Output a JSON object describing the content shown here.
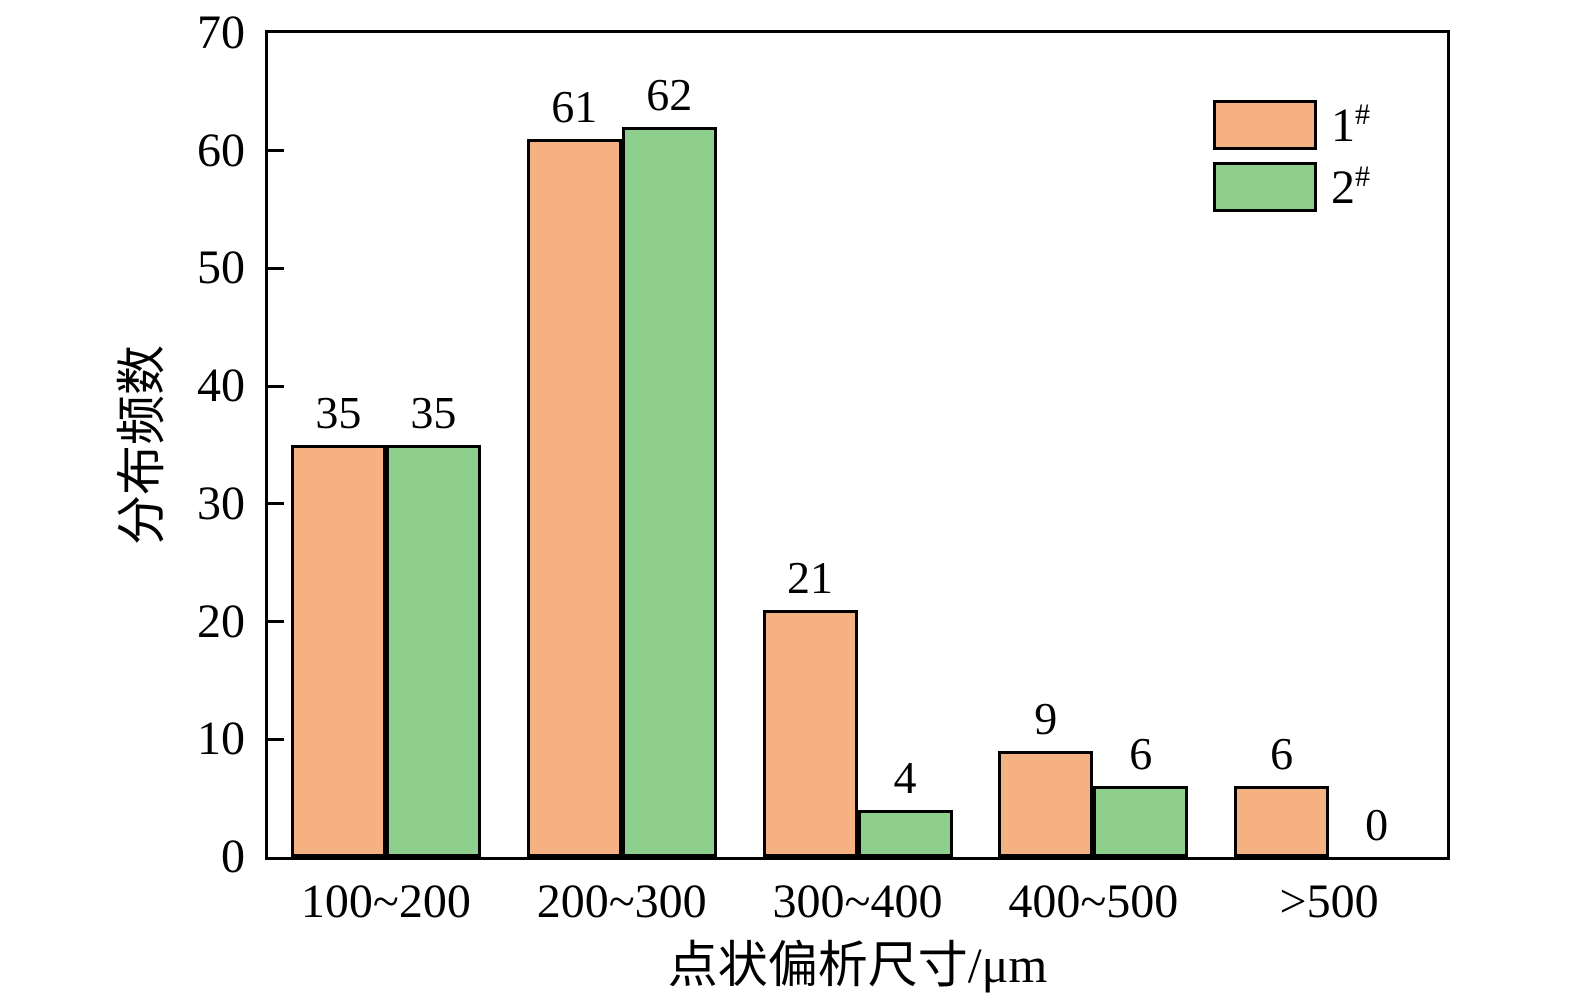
{
  "chart_data": {
    "type": "bar",
    "title": "",
    "categories": [
      "100~200",
      "200~300",
      "300~400",
      "400~500",
      ">500"
    ],
    "series": [
      {
        "name": "1",
        "name_superscript": "#",
        "color": "#F6B183",
        "values": [
          35,
          61,
          21,
          9,
          6
        ]
      },
      {
        "name": "2",
        "name_superscript": "#",
        "color": "#8ECF8E",
        "values": [
          35,
          62,
          4,
          6,
          0
        ]
      }
    ],
    "xlabel": "点状偏析尺寸/μm",
    "ylabel": "分布频数",
    "ylim": [
      0,
      70
    ],
    "ytick_step": 10,
    "yticks": [
      0,
      10,
      20,
      30,
      40,
      50,
      60,
      70
    ],
    "bar_border_color": "#000000",
    "axis_color": "#000000",
    "grid": false,
    "legend_position": "top-right",
    "show_value_labels": true
  }
}
